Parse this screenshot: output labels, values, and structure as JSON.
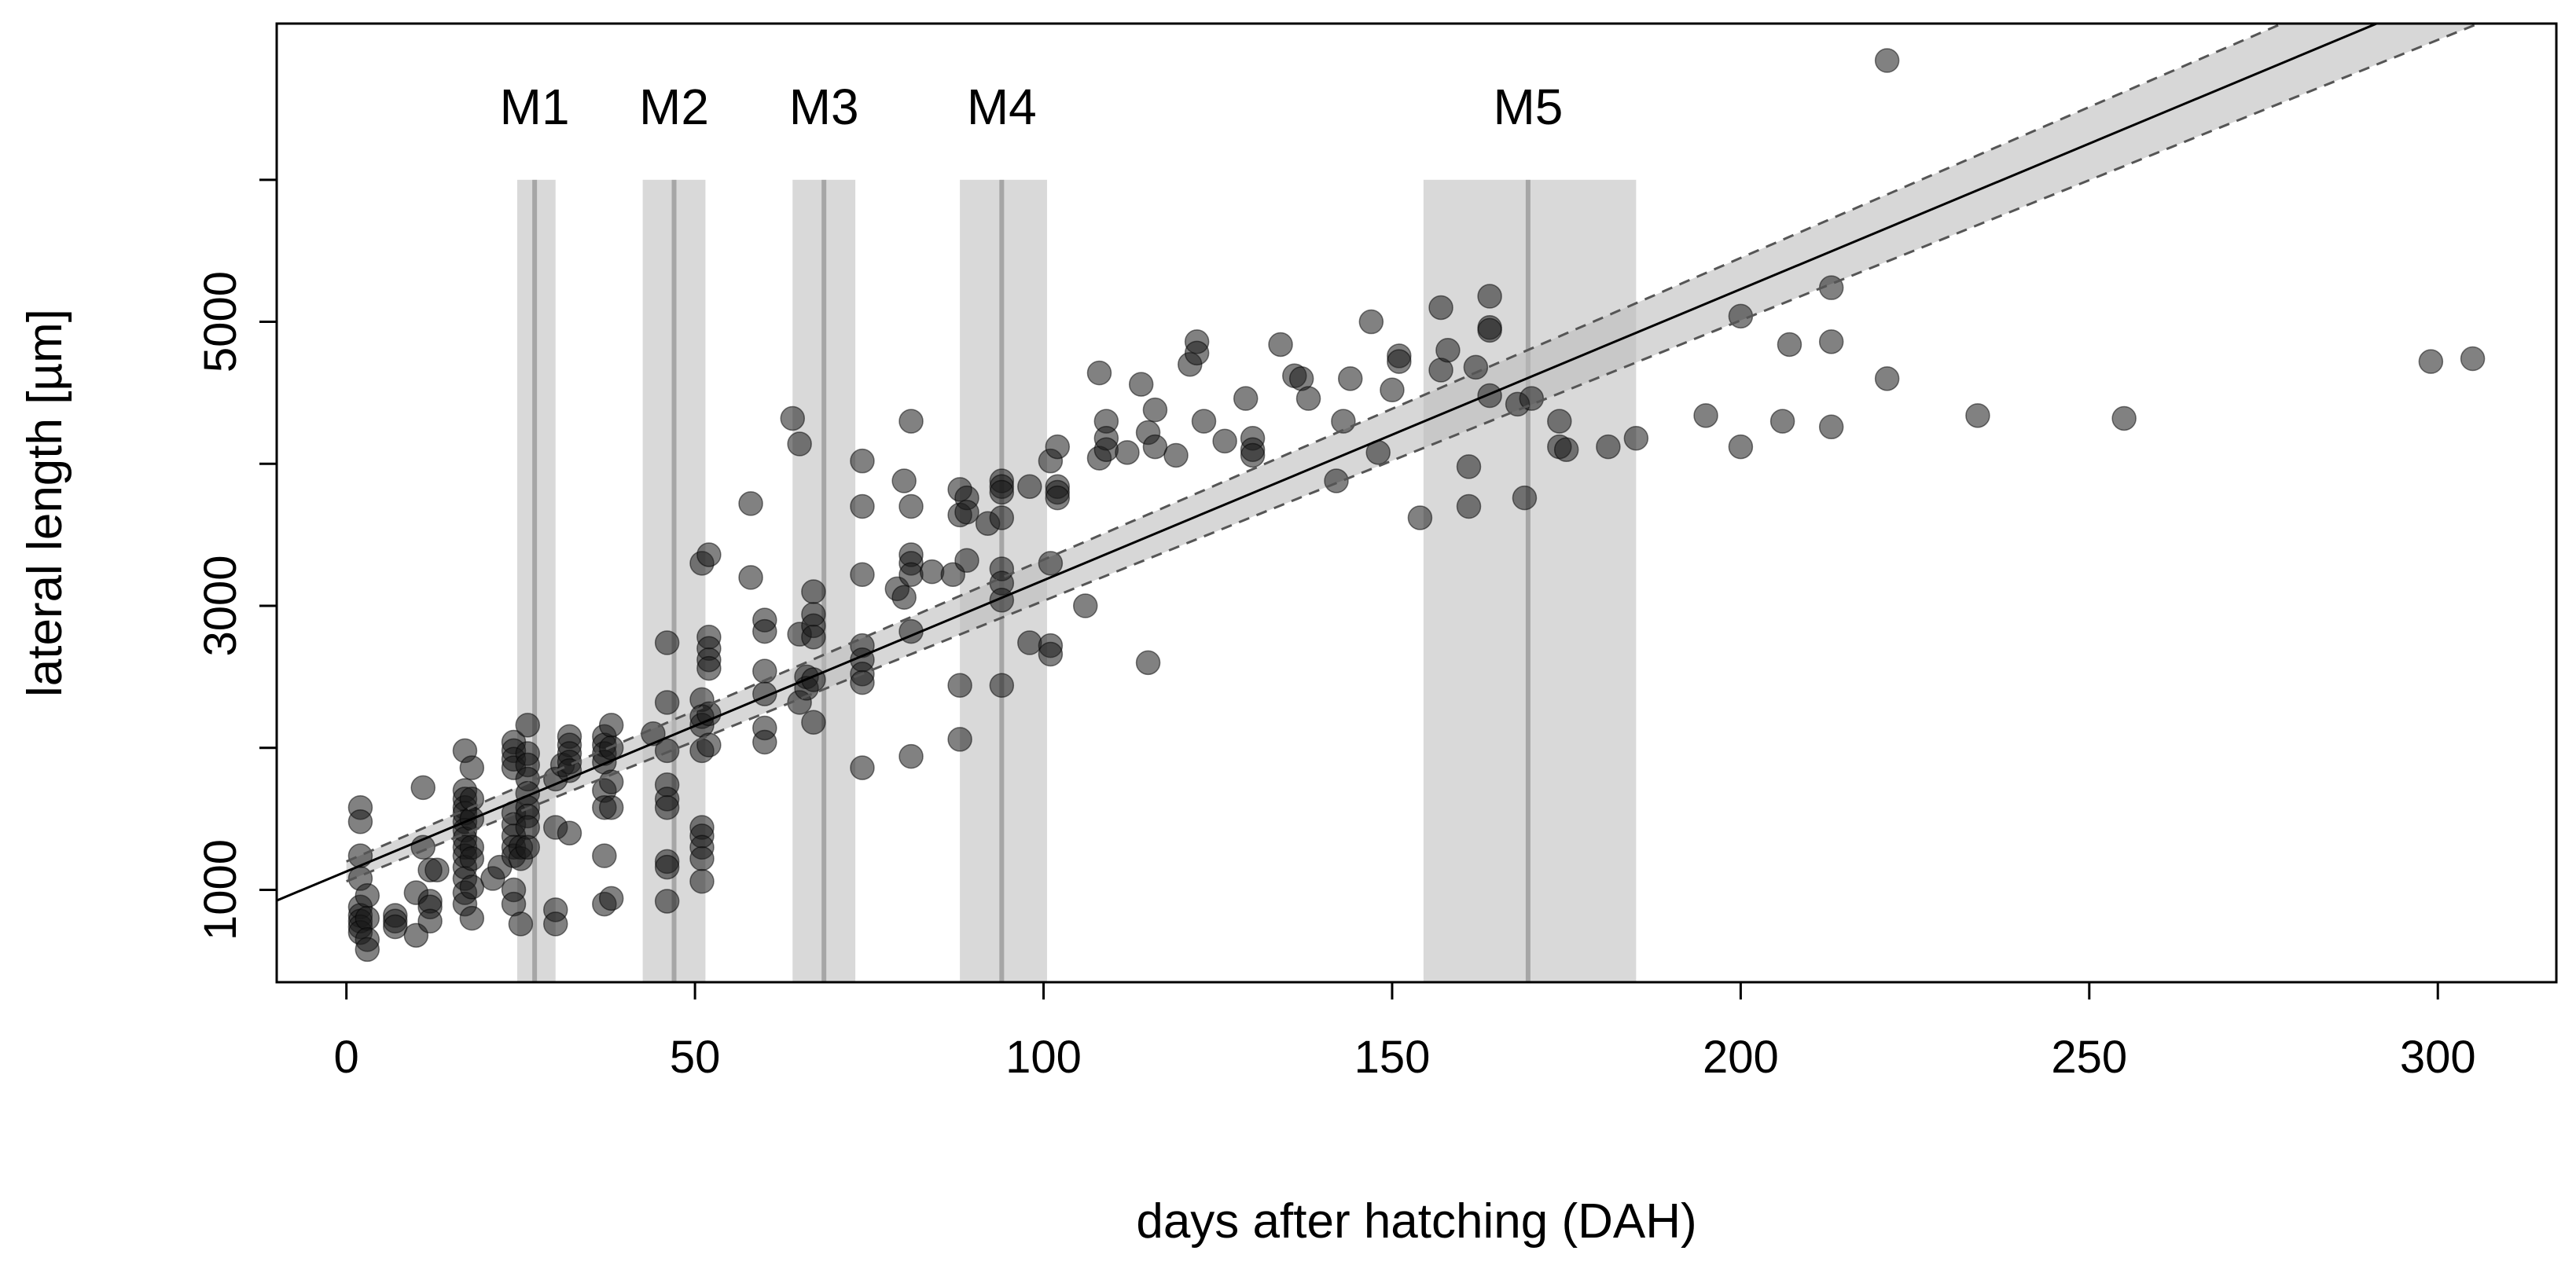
{
  "chart_data": {
    "type": "scatter",
    "title": "",
    "xlabel": "days after hatching (DAH)",
    "ylabel": "lateral length [µm]",
    "xlim": [
      -10,
      317
    ],
    "ylim": [
      350,
      7100
    ],
    "xticks": [
      0,
      50,
      100,
      150,
      200,
      250,
      300
    ],
    "yticks": [
      1000,
      3000,
      5000
    ],
    "yticks_minor": [
      2000,
      4000,
      6000
    ],
    "grid": false,
    "regression": {
      "intercept": 1130,
      "slope": 20.5,
      "ci_lower": {
        "intercept": 1060,
        "slope": 19.75
      },
      "ci_upper": {
        "intercept": 1200,
        "slope": 21.25
      }
    },
    "milestones": [
      {
        "label": "M1",
        "center": 27,
        "low": 24.5,
        "high": 30,
        "y_top": 6000
      },
      {
        "label": "M2",
        "center": 47,
        "low": 42.5,
        "high": 51.5,
        "y_top": 6000
      },
      {
        "label": "M3",
        "center": 68.5,
        "low": 64,
        "high": 73,
        "y_top": 6000
      },
      {
        "label": "M4",
        "center": 94,
        "low": 88,
        "high": 100.5,
        "y_top": 6000
      },
      {
        "label": "M5",
        "center": 169.5,
        "low": 154.5,
        "high": 185,
        "y_top": 6000
      }
    ],
    "points": [
      [
        2,
        1580
      ],
      [
        2,
        1480
      ],
      [
        2,
        1240
      ],
      [
        2,
        1080
      ],
      [
        2,
        880
      ],
      [
        2,
        820
      ],
      [
        2,
        780
      ],
      [
        2,
        740
      ],
      [
        2,
        700
      ],
      [
        3,
        960
      ],
      [
        3,
        800
      ],
      [
        3,
        650
      ],
      [
        3,
        580
      ],
      [
        7,
        820
      ],
      [
        7,
        780
      ],
      [
        7,
        740
      ],
      [
        10,
        980
      ],
      [
        10,
        680
      ],
      [
        11,
        1720
      ],
      [
        11,
        1300
      ],
      [
        12,
        920
      ],
      [
        12,
        880
      ],
      [
        12,
        780
      ],
      [
        12,
        1140
      ],
      [
        13,
        1140
      ],
      [
        17,
        1980
      ],
      [
        17,
        1700
      ],
      [
        17,
        1640
      ],
      [
        17,
        1580
      ],
      [
        17,
        1540
      ],
      [
        17,
        1480
      ],
      [
        17,
        1420
      ],
      [
        17,
        1360
      ],
      [
        17,
        1300
      ],
      [
        17,
        1240
      ],
      [
        17,
        1160
      ],
      [
        17,
        1080
      ],
      [
        17,
        980
      ],
      [
        17,
        900
      ],
      [
        18,
        1860
      ],
      [
        18,
        1640
      ],
      [
        18,
        1500
      ],
      [
        18,
        1300
      ],
      [
        18,
        1220
      ],
      [
        18,
        1020
      ],
      [
        18,
        800
      ],
      [
        21,
        1080
      ],
      [
        22,
        1160
      ],
      [
        24,
        2040
      ],
      [
        24,
        1980
      ],
      [
        24,
        1920
      ],
      [
        24,
        1860
      ],
      [
        24,
        1540
      ],
      [
        24,
        1460
      ],
      [
        24,
        1380
      ],
      [
        24,
        1300
      ],
      [
        24,
        1240
      ],
      [
        24,
        1000
      ],
      [
        24,
        900
      ],
      [
        25,
        1300
      ],
      [
        25,
        1220
      ],
      [
        25,
        760
      ],
      [
        26,
        2160
      ],
      [
        26,
        1960
      ],
      [
        26,
        1880
      ],
      [
        26,
        1780
      ],
      [
        26,
        1680
      ],
      [
        26,
        1580
      ],
      [
        26,
        1520
      ],
      [
        26,
        1440
      ],
      [
        26,
        1300
      ],
      [
        30,
        1780
      ],
      [
        30,
        1440
      ],
      [
        30,
        860
      ],
      [
        30,
        760
      ],
      [
        31,
        1880
      ],
      [
        32,
        2080
      ],
      [
        32,
        2020
      ],
      [
        32,
        1960
      ],
      [
        32,
        1900
      ],
      [
        32,
        1840
      ],
      [
        32,
        1400
      ],
      [
        37,
        2080
      ],
      [
        37,
        2020
      ],
      [
        37,
        1960
      ],
      [
        37,
        1900
      ],
      [
        37,
        1700
      ],
      [
        37,
        1580
      ],
      [
        37,
        1240
      ],
      [
        37,
        900
      ],
      [
        38,
        2160
      ],
      [
        38,
        2000
      ],
      [
        38,
        1760
      ],
      [
        38,
        1580
      ],
      [
        38,
        940
      ],
      [
        44,
        2100
      ],
      [
        46,
        1980
      ],
      [
        46,
        1740
      ],
      [
        46,
        1640
      ],
      [
        46,
        1580
      ],
      [
        46,
        1200
      ],
      [
        46,
        1160
      ],
      [
        46,
        920
      ],
      [
        46,
        2740
      ],
      [
        46,
        2320
      ],
      [
        51,
        3300
      ],
      [
        51,
        2340
      ],
      [
        51,
        2220
      ],
      [
        51,
        2160
      ],
      [
        51,
        1980
      ],
      [
        51,
        1440
      ],
      [
        51,
        1380
      ],
      [
        51,
        1300
      ],
      [
        51,
        1220
      ],
      [
        51,
        1060
      ],
      [
        52,
        3360
      ],
      [
        52,
        2780
      ],
      [
        52,
        2700
      ],
      [
        52,
        2620
      ],
      [
        52,
        2560
      ],
      [
        52,
        2240
      ],
      [
        52,
        2020
      ],
      [
        58,
        3200
      ],
      [
        58,
        3720
      ],
      [
        60,
        2900
      ],
      [
        60,
        2820
      ],
      [
        60,
        2540
      ],
      [
        60,
        2380
      ],
      [
        60,
        2140
      ],
      [
        60,
        2040
      ],
      [
        64,
        4320
      ],
      [
        65,
        4140
      ],
      [
        65,
        2800
      ],
      [
        65,
        2320
      ],
      [
        66,
        2500
      ],
      [
        66,
        2420
      ],
      [
        67,
        3100
      ],
      [
        67,
        2940
      ],
      [
        67,
        2860
      ],
      [
        67,
        2780
      ],
      [
        67,
        2480
      ],
      [
        67,
        2180
      ],
      [
        74,
        4020
      ],
      [
        74,
        3700
      ],
      [
        74,
        3220
      ],
      [
        74,
        2720
      ],
      [
        74,
        2620
      ],
      [
        74,
        2520
      ],
      [
        74,
        2460
      ],
      [
        74,
        1860
      ],
      [
        79,
        3120
      ],
      [
        80,
        3060
      ],
      [
        80,
        3880
      ],
      [
        81,
        4300
      ],
      [
        81,
        3700
      ],
      [
        81,
        3360
      ],
      [
        81,
        3300
      ],
      [
        81,
        3220
      ],
      [
        81,
        2820
      ],
      [
        81,
        1940
      ],
      [
        84,
        3240
      ],
      [
        87,
        3220
      ],
      [
        88,
        3820
      ],
      [
        88,
        3640
      ],
      [
        88,
        2440
      ],
      [
        88,
        2060
      ],
      [
        89,
        3760
      ],
      [
        89,
        3660
      ],
      [
        89,
        3320
      ],
      [
        92,
        3580
      ],
      [
        94,
        3880
      ],
      [
        94,
        3840
      ],
      [
        94,
        3800
      ],
      [
        94,
        3620
      ],
      [
        94,
        3260
      ],
      [
        94,
        3160
      ],
      [
        94,
        3040
      ],
      [
        94,
        2440
      ],
      [
        98,
        3840
      ],
      [
        98,
        2740
      ],
      [
        101,
        4020
      ],
      [
        101,
        3300
      ],
      [
        101,
        2720
      ],
      [
        101,
        2660
      ],
      [
        102,
        4120
      ],
      [
        102,
        3840
      ],
      [
        102,
        3800
      ],
      [
        102,
        3760
      ],
      [
        106,
        3000
      ],
      [
        108,
        4640
      ],
      [
        108,
        4040
      ],
      [
        109,
        4300
      ],
      [
        109,
        4180
      ],
      [
        109,
        4100
      ],
      [
        112,
        4080
      ],
      [
        114,
        4560
      ],
      [
        115,
        2600
      ],
      [
        115,
        4220
      ],
      [
        116,
        4380
      ],
      [
        116,
        4120
      ],
      [
        119,
        4060
      ],
      [
        121,
        4700
      ],
      [
        122,
        4860
      ],
      [
        122,
        4780
      ],
      [
        123,
        4300
      ],
      [
        126,
        4160
      ],
      [
        129,
        4460
      ],
      [
        130,
        4180
      ],
      [
        130,
        4100
      ],
      [
        130,
        4060
      ],
      [
        134,
        4840
      ],
      [
        136,
        4620
      ],
      [
        137,
        4600
      ],
      [
        138,
        4460
      ],
      [
        142,
        3880
      ],
      [
        143,
        4300
      ],
      [
        144,
        4600
      ],
      [
        147,
        5000
      ],
      [
        148,
        4080
      ],
      [
        150,
        4520
      ],
      [
        151,
        4760
      ],
      [
        151,
        4720
      ],
      [
        154,
        3620
      ],
      [
        157,
        5100
      ],
      [
        157,
        4660
      ],
      [
        158,
        4800
      ],
      [
        161,
        3980
      ],
      [
        161,
        3700
      ],
      [
        162,
        4680
      ],
      [
        164,
        5180
      ],
      [
        164,
        4960
      ],
      [
        164,
        4940
      ],
      [
        164,
        4480
      ],
      [
        168,
        4420
      ],
      [
        169,
        3760
      ],
      [
        170,
        4460
      ],
      [
        174,
        4300
      ],
      [
        174,
        4120
      ],
      [
        175,
        4100
      ],
      [
        181,
        4120
      ],
      [
        185,
        4180
      ],
      [
        195,
        4340
      ],
      [
        200,
        5040
      ],
      [
        200,
        4120
      ],
      [
        206,
        4300
      ],
      [
        207,
        4840
      ],
      [
        213,
        5240
      ],
      [
        213,
        4860
      ],
      [
        213,
        4260
      ],
      [
        221,
        6840
      ],
      [
        221,
        4600
      ],
      [
        234,
        4340
      ],
      [
        255,
        4320
      ],
      [
        299,
        4720
      ],
      [
        305,
        4740
      ]
    ]
  }
}
